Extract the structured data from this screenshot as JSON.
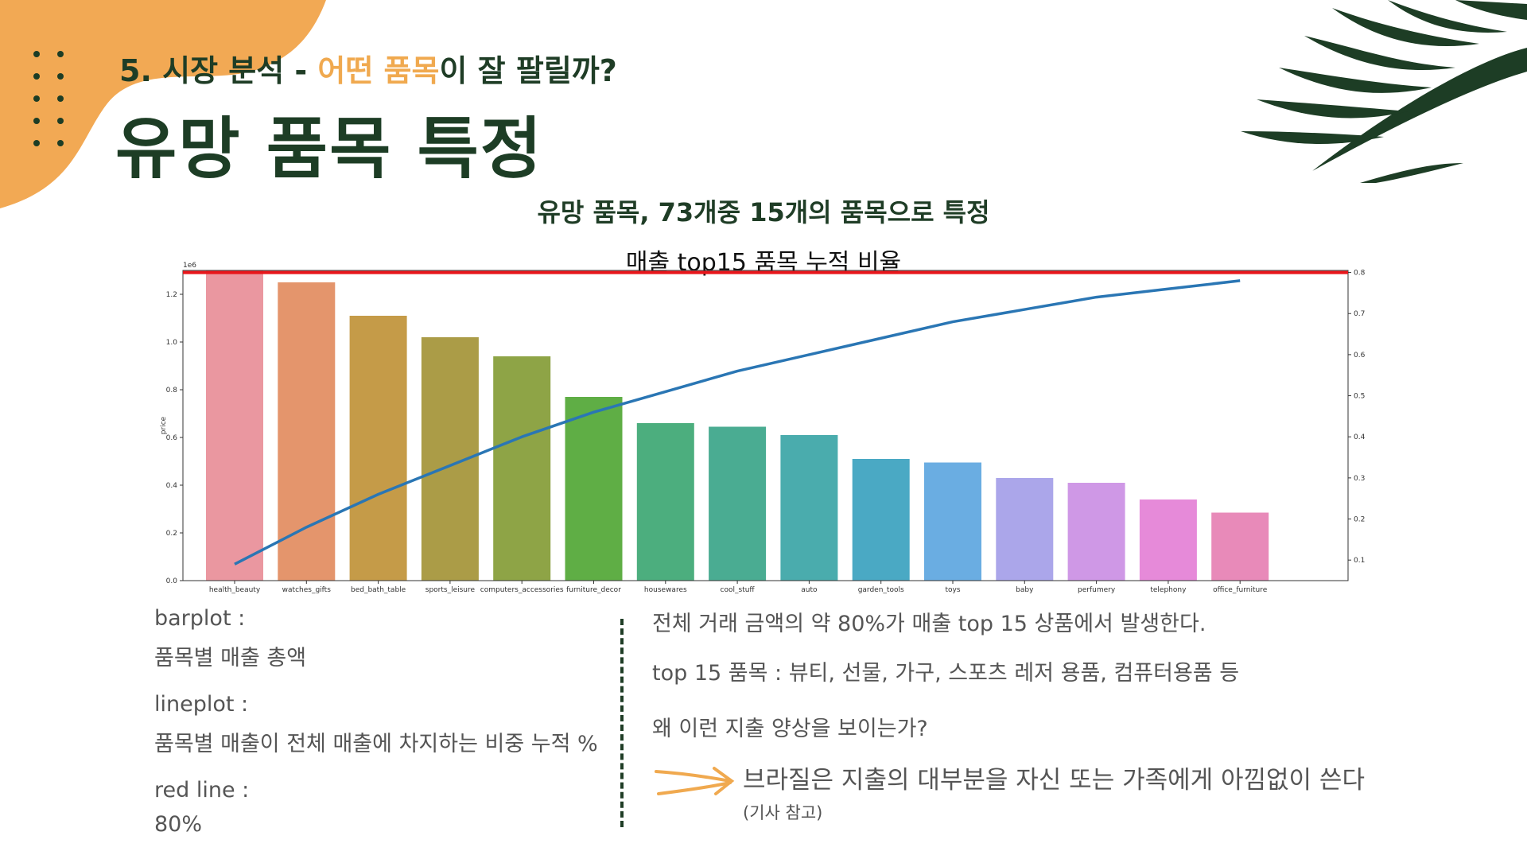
{
  "header": {
    "subtitle_prefix": "5. 시장 분석 - ",
    "subtitle_highlight": "어떤 품목",
    "subtitle_suffix": "이 잘 팔릴까?",
    "title": "유망 품목 특정"
  },
  "chart_heading": "유망 품목, 73개중 15개의 품목으로 특정",
  "chart_data": {
    "type": "bar",
    "title": "매출 top15 품목 누적 비율",
    "ylabel": "price",
    "y_exponent": "1e6",
    "ylim": [
      0,
      1.3
    ],
    "y_ticks": [
      "0.0",
      "0.2",
      "0.4",
      "0.6",
      "0.8",
      "1.0",
      "1.2"
    ],
    "y2lim": [
      0.05,
      0.805
    ],
    "y2_ticks": [
      "0.1",
      "0.2",
      "0.3",
      "0.4",
      "0.5",
      "0.6",
      "0.7",
      "0.8"
    ],
    "categories": [
      "health_beauty",
      "watches_gifts",
      "bed_bath_table",
      "sports_leisure",
      "computers_accessories",
      "furniture_decor",
      "housewares",
      "cool_stuff",
      "auto",
      "garden_tools",
      "toys",
      "baby",
      "perfumery",
      "telephony",
      "office_furniture"
    ],
    "values": [
      1.3,
      1.25,
      1.11,
      1.02,
      0.94,
      0.77,
      0.66,
      0.645,
      0.61,
      0.51,
      0.495,
      0.43,
      0.41,
      0.34,
      0.285
    ],
    "cumulative_ratio": [
      0.09,
      0.18,
      0.26,
      0.33,
      0.4,
      0.46,
      0.51,
      0.56,
      0.6,
      0.64,
      0.68,
      0.71,
      0.74,
      0.76,
      0.78
    ],
    "red_line_value": 0.8,
    "bar_colors": [
      "#ea97a0",
      "#e4956c",
      "#c59b48",
      "#ab9c47",
      "#8ea446",
      "#5fae45",
      "#4cae7e",
      "#4aac92",
      "#4aacad",
      "#4aa9c4",
      "#6aade2",
      "#aba6ea",
      "#cf98e6",
      "#e68ad9",
      "#e88ab9"
    ],
    "line_color": "#2a76b4",
    "red_color": "#e8161b"
  },
  "notes_left": [
    {
      "label": "barplot :",
      "value": "품목별 매출 총액"
    },
    {
      "label": "lineplot :",
      "value": "품목별 매출이 전체 매출에 차지하는 비중 누적 %"
    },
    {
      "label": "red line :",
      "value": "80%"
    }
  ],
  "notes_right": {
    "line1": "전체 거래 금액의 약 80%가 매출 top 15 상품에서 발생한다.",
    "line2": "top 15 품목 : 뷰티, 선물, 가구, 스포츠 레저 용품, 컴퓨터용품 등",
    "line3": "왜 이런 지출 양상을 보이는가?",
    "conclusion": "브라질은 지출의 대부분을 자신 또는 가족에게 아낌없이 쓴다",
    "reference": "(기사 참고)"
  },
  "colors": {
    "accent_orange": "#f0a94f",
    "dark_green": "#1d3d25"
  }
}
